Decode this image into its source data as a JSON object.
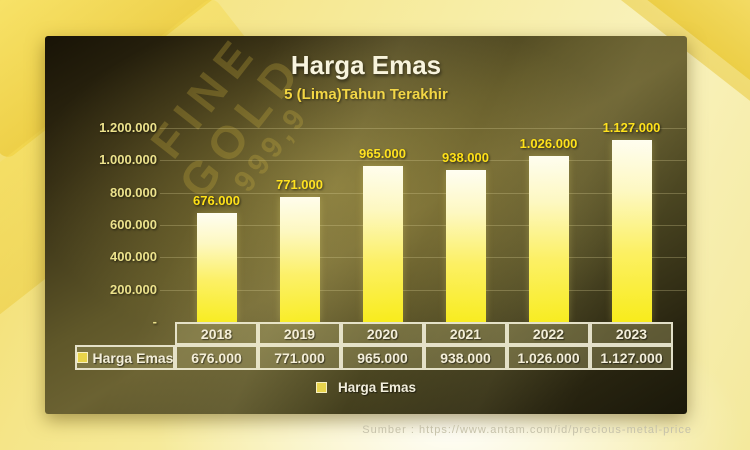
{
  "slide": {
    "title": "Harga Emas",
    "subtitle": "5 (Lima)Tahun Terakhir",
    "source_text": "Sumber : https://www.antam.com/id/precious-metal-price",
    "watermark_line1": "FINE",
    "watermark_line2": "GOLD",
    "watermark_line3": "999,9"
  },
  "chart_data": {
    "type": "bar",
    "title": "Harga Emas",
    "subtitle": "5 (Lima)Tahun Terakhir",
    "categories": [
      "2018",
      "2019",
      "2020",
      "2021",
      "2022",
      "2023"
    ],
    "series": [
      {
        "name": "Harga Emas",
        "values": [
          676000,
          771000,
          965000,
          938000,
          1026000,
          1127000
        ]
      }
    ],
    "data_labels": [
      "676.000",
      "771.000",
      "965.000",
      "938.000",
      "1.026.000",
      "1.127.000"
    ],
    "ylim": [
      0,
      1200000
    ],
    "grid": true,
    "y_ticks": [
      {
        "label": "1.200.000",
        "value": 1200000
      },
      {
        "label": "1.000.000",
        "value": 1000000
      },
      {
        "label": "800.000",
        "value": 800000
      },
      {
        "label": "600.000",
        "value": 600000
      },
      {
        "label": "400.000",
        "value": 400000
      },
      {
        "label": "200.000",
        "value": 200000
      },
      {
        "label": "-",
        "value": 0
      }
    ],
    "legend": {
      "label": "Harga Emas",
      "position": "bottom",
      "swatch_color": "#e8d44a"
    },
    "data_table": {
      "row_label": "Harga Emas",
      "years": [
        "2018",
        "2019",
        "2020",
        "2021",
        "2022",
        "2023"
      ],
      "values": [
        "676.000",
        "771.000",
        "965.000",
        "938.000",
        "1.026.000",
        "1.127.000"
      ]
    },
    "colors": {
      "bar_gradient_top": "#fffef2",
      "bar_gradient_bottom": "#f8ec1c",
      "data_label": "#ffe115",
      "axis_label": "#ece28c",
      "title": "#f8f4e1",
      "subtitle": "#f2d43e"
    }
  }
}
